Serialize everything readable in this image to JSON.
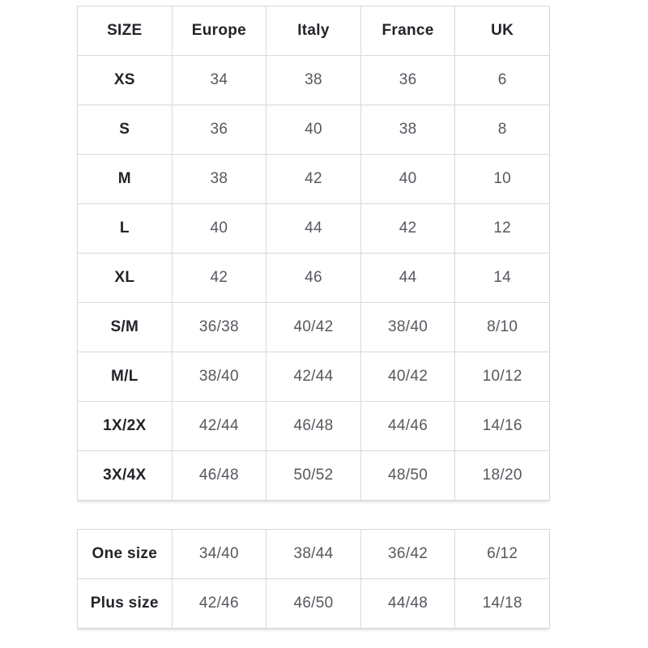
{
  "size_chart": {
    "headers": [
      "SIZE",
      "Europe",
      "Italy",
      "France",
      "UK"
    ],
    "rows": [
      [
        "XS",
        "34",
        "38",
        "36",
        "6"
      ],
      [
        "S",
        "36",
        "40",
        "38",
        "8"
      ],
      [
        "M",
        "38",
        "42",
        "40",
        "10"
      ],
      [
        "L",
        "40",
        "44",
        "42",
        "12"
      ],
      [
        "XL",
        "42",
        "46",
        "44",
        "14"
      ],
      [
        "S/M",
        "36/38",
        "40/42",
        "38/40",
        "8/10"
      ],
      [
        "M/L",
        "38/40",
        "42/44",
        "40/42",
        "10/12"
      ],
      [
        "1X/2X",
        "42/44",
        "46/48",
        "44/46",
        "14/16"
      ],
      [
        "3X/4X",
        "46/48",
        "50/52",
        "48/50",
        "18/20"
      ]
    ]
  },
  "special_size_chart": {
    "rows": [
      [
        "One size",
        "34/40",
        "38/44",
        "36/42",
        "6/12"
      ],
      [
        "Plus size",
        "42/46",
        "46/50",
        "44/48",
        "14/18"
      ]
    ]
  },
  "colors": {
    "border": "#d9d9dd",
    "header_text": "#232329",
    "cell_text": "#57575f",
    "background": "#ffffff"
  }
}
